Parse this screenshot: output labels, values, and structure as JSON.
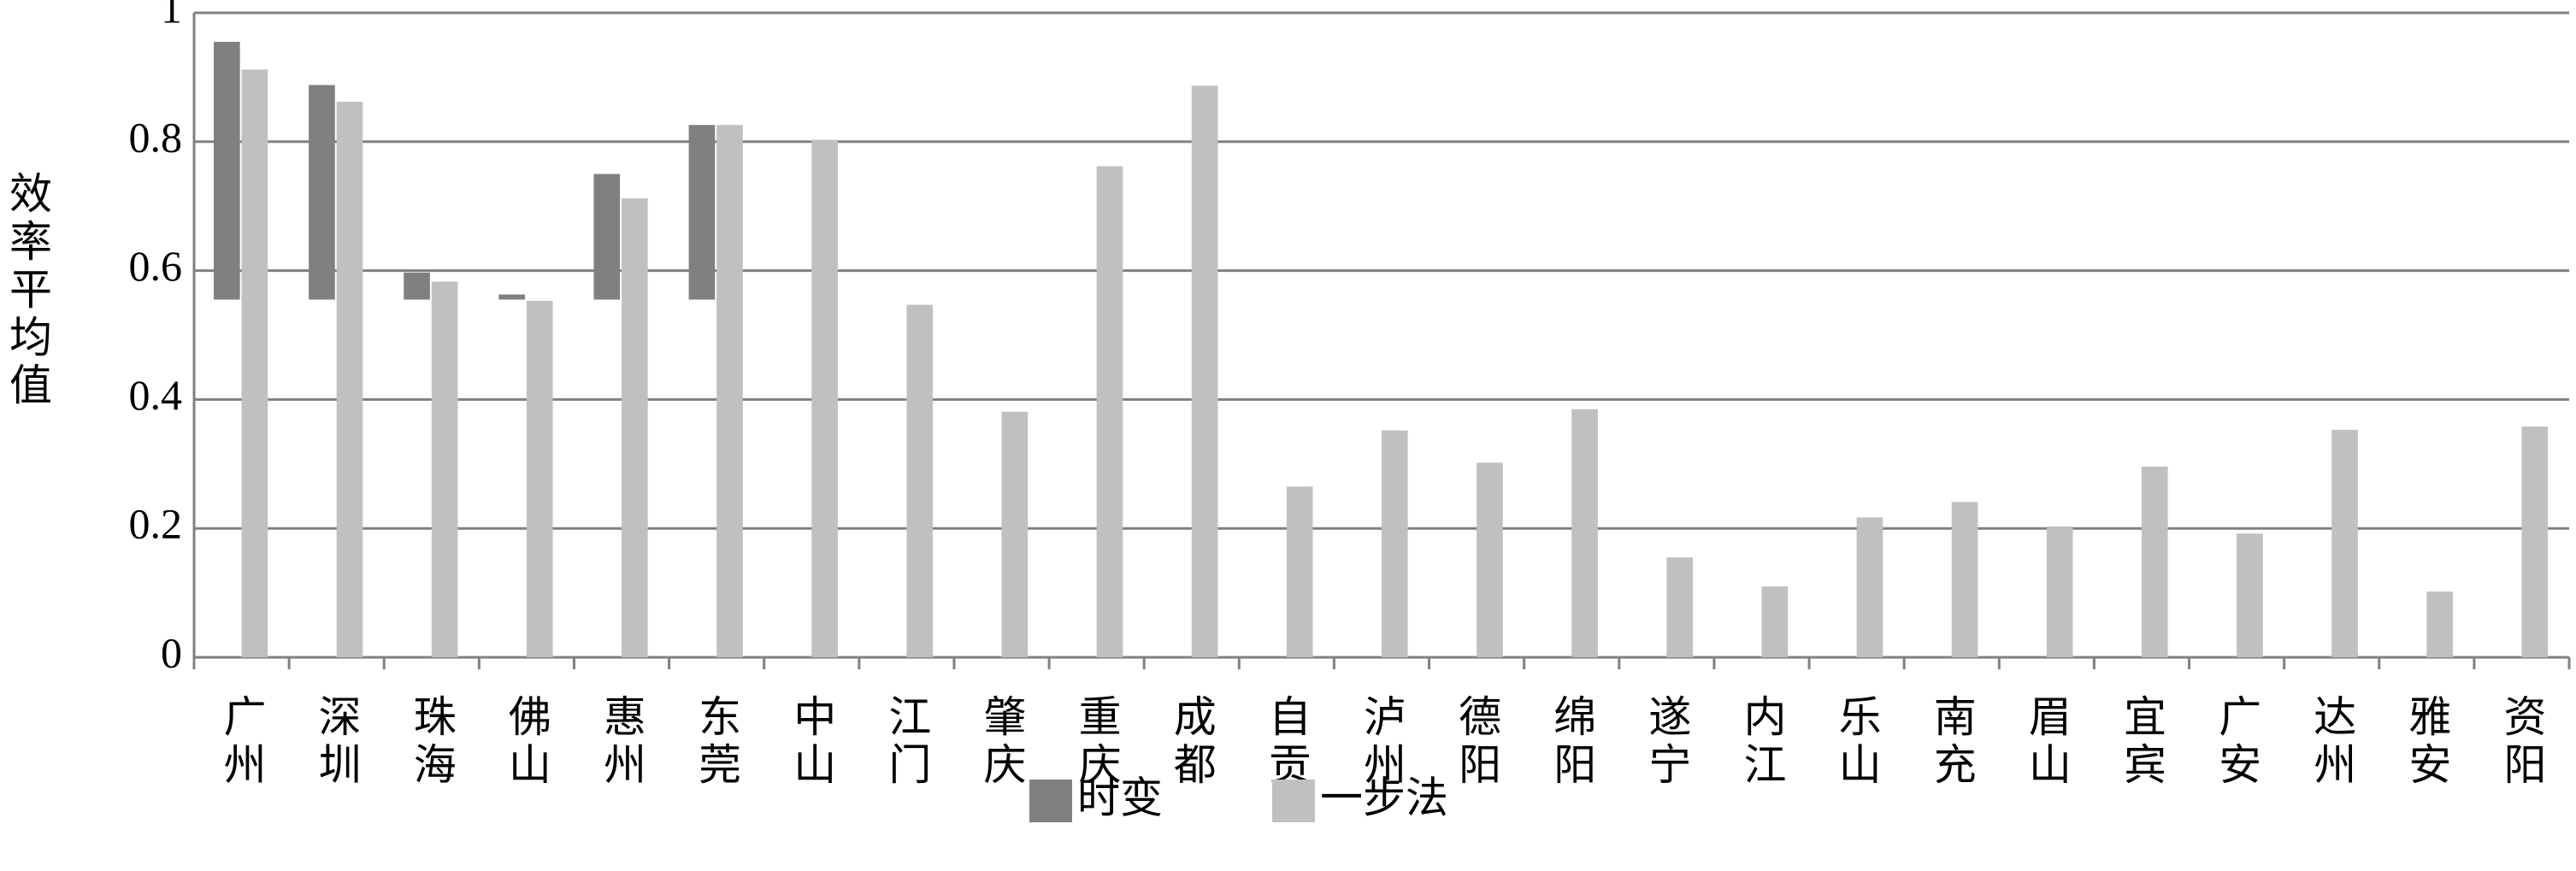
{
  "chart_data": {
    "type": "bar",
    "y_label": "效率平均值",
    "categories": [
      "广州",
      "深圳",
      "珠海",
      "佛山",
      "惠州",
      "东莞",
      "中山",
      "江门",
      "肇庆",
      "重庆",
      "成都",
      "自贡",
      "泸州",
      "德阳",
      "绵阳",
      "遂宁",
      "内江",
      "乐山",
      "南充",
      "眉山",
      "宜宾",
      "广安",
      "达州",
      "雅安",
      "资阳"
    ],
    "series": [
      {
        "name": "时变",
        "color": "#808080",
        "base": 0.555,
        "values": [
          0.955,
          0.888,
          0.597,
          0.563,
          0.75,
          0.826,
          null,
          null,
          null,
          null,
          null,
          null,
          null,
          null,
          null,
          null,
          null,
          null,
          null,
          null,
          null,
          null,
          null,
          null,
          null
        ]
      },
      {
        "name": "一步法",
        "color": "#c0c0c0",
        "values": [
          0.912,
          0.862,
          0.583,
          0.553,
          0.712,
          0.826,
          0.803,
          0.547,
          0.381,
          0.762,
          0.887,
          0.265,
          0.352,
          0.302,
          0.385,
          0.155,
          0.11,
          0.217,
          0.241,
          0.203,
          0.296,
          0.192,
          0.353,
          0.102,
          0.358
        ]
      }
    ],
    "ylim": [
      0,
      1
    ],
    "yticks": [
      0,
      0.2,
      0.4,
      0.6,
      0.8,
      1
    ],
    "grid": true
  }
}
